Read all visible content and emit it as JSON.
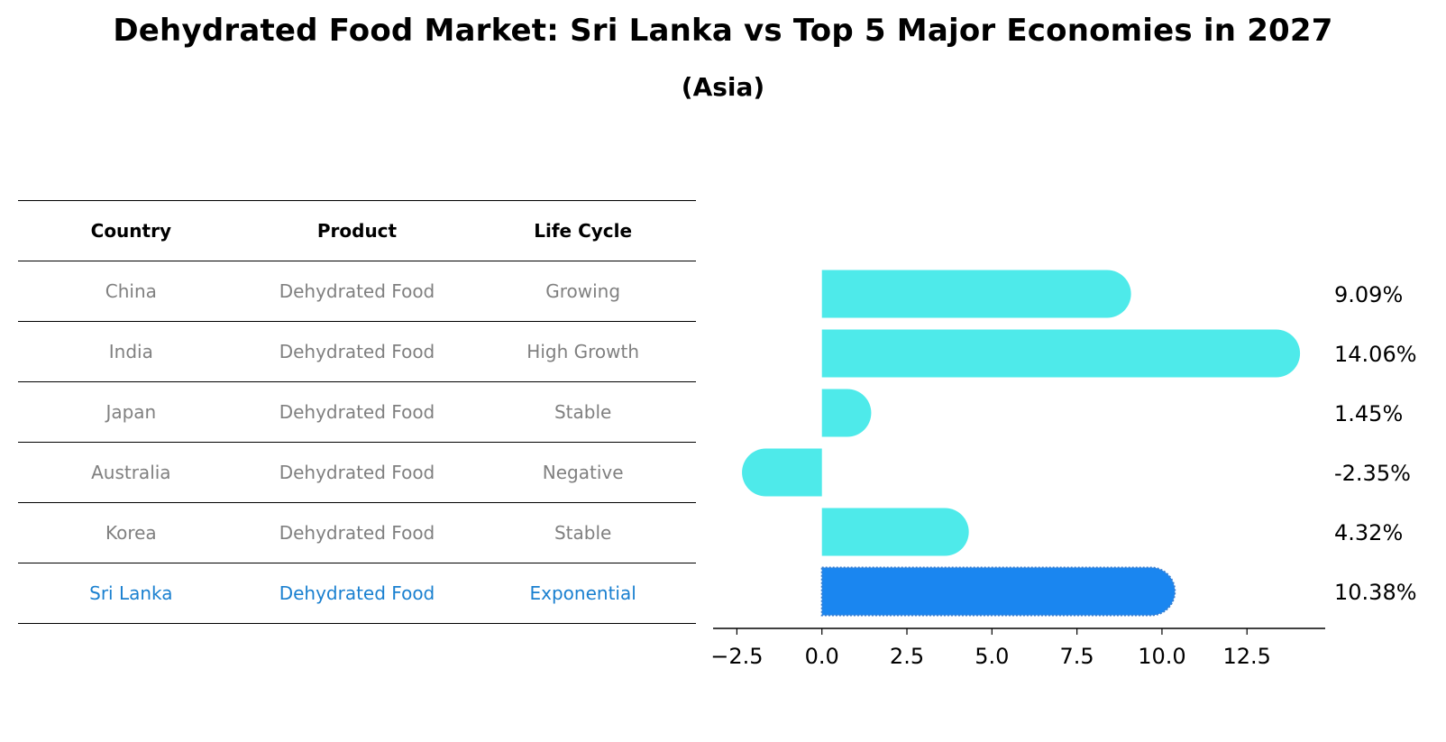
{
  "title": "Dehydrated Food Market: Sri Lanka vs Top 5 Major Economies in 2027",
  "subtitle": "(Asia)",
  "table": {
    "headers": [
      "Country",
      "Product",
      "Life Cycle"
    ],
    "rows": [
      {
        "country": "China",
        "product": "Dehydrated Food",
        "life_cycle": "Growing",
        "highlight": false
      },
      {
        "country": "India",
        "product": "Dehydrated Food",
        "life_cycle": "High Growth",
        "highlight": false
      },
      {
        "country": "Japan",
        "product": "Dehydrated Food",
        "life_cycle": "Stable",
        "highlight": false
      },
      {
        "country": "Australia",
        "product": "Dehydrated Food",
        "life_cycle": "Negative",
        "highlight": false
      },
      {
        "country": "Korea",
        "product": "Dehydrated Food",
        "life_cycle": "Stable",
        "highlight": false
      },
      {
        "country": "Sri Lanka",
        "product": "Dehydrated Food",
        "life_cycle": "Exponential",
        "highlight": true
      }
    ]
  },
  "colors": {
    "bar": "#4eeaea",
    "highlight_bar": "#1a86f0",
    "highlight_text": "#1a80d0",
    "muted_text": "#808080"
  },
  "chart_data": {
    "type": "bar",
    "orientation": "horizontal",
    "categories": [
      "China",
      "India",
      "Japan",
      "Australia",
      "Korea",
      "Sri Lanka"
    ],
    "values": [
      9.09,
      14.06,
      1.45,
      -2.35,
      4.32,
      10.38
    ],
    "value_labels": [
      "9.09%",
      "14.06%",
      "1.45%",
      "-2.35%",
      "4.32%",
      "10.38%"
    ],
    "highlight_index": 5,
    "xlim": [
      -3.2,
      14.8
    ],
    "xticks": [
      -2.5,
      0.0,
      2.5,
      5.0,
      7.5,
      10.0,
      12.5
    ],
    "xtick_labels": [
      "−2.5",
      "0.0",
      "2.5",
      "5.0",
      "7.5",
      "10.0",
      "12.5"
    ],
    "xlabel": "",
    "ylabel": "",
    "grid": false
  }
}
